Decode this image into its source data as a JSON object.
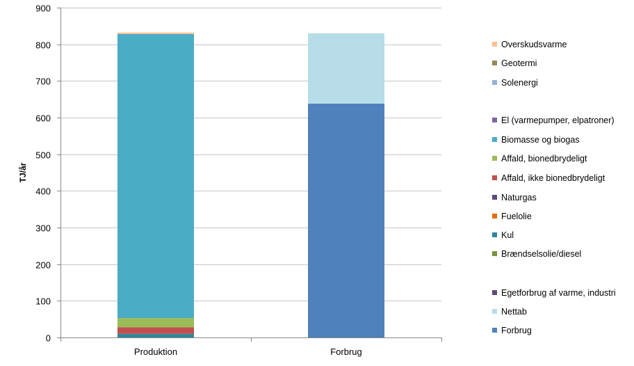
{
  "chart_data": {
    "type": "bar",
    "stacked": true,
    "categories": [
      "Produktion",
      "Forbrug"
    ],
    "ylabel": "TJ/år",
    "xlabel": "",
    "title": "",
    "ylim": [
      0,
      900
    ],
    "yticks": [
      0,
      100,
      200,
      300,
      400,
      500,
      600,
      700,
      800,
      900
    ],
    "grid": true,
    "legend_position": "right",
    "series": [
      {
        "name": "Forbrug",
        "color": "#4F81BD",
        "values": [
          0,
          638
        ]
      },
      {
        "name": "Nettab",
        "color": "#B7DDE8",
        "values": [
          0,
          192
        ]
      },
      {
        "name": "Egetforbrug af varme, industri",
        "color": "#604A7B",
        "values": [
          0,
          0
        ]
      },
      {
        "name": "Brændselsolie/diesel",
        "color": "#77933C",
        "values": [
          0,
          0
        ]
      },
      {
        "name": "Kul",
        "color": "#31859C",
        "values": [
          10,
          0
        ]
      },
      {
        "name": "Fuelolie",
        "color": "#E46C0A",
        "values": [
          0,
          0
        ]
      },
      {
        "name": "Naturgas",
        "color": "#604A7B",
        "values": [
          0,
          0
        ]
      },
      {
        "name": "Affald, ikke bionedbrydeligt",
        "color": "#C0504D",
        "values": [
          18,
          0
        ]
      },
      {
        "name": "Affald, bionedbrydeligt",
        "color": "#9BBB59",
        "values": [
          25,
          0
        ]
      },
      {
        "name": "Biomasse og biogas",
        "color": "#4BACC6",
        "values": [
          775,
          0
        ]
      },
      {
        "name": "El (varmepumper, elpatroner)",
        "color": "#8064A2",
        "values": [
          0,
          0
        ]
      },
      {
        "name": "Solenergi",
        "color": "#95B3D7",
        "values": [
          0,
          0
        ]
      },
      {
        "name": "Geotermi",
        "color": "#948A54",
        "values": [
          0,
          0
        ]
      },
      {
        "name": "Overskudsvarme",
        "color": "#FAC090",
        "values": [
          4,
          0
        ]
      }
    ],
    "legend_order": [
      "Overskudsvarme",
      "Geotermi",
      "Solenergi",
      "El (varmepumper, elpatroner)",
      "Biomasse og biogas",
      "Affald, bionedbrydeligt",
      "Affald, ikke bionedbrydeligt",
      "Naturgas",
      "Fuelolie",
      "Kul",
      "Brændselsolie/diesel",
      "Egetforbrug af varme, industri",
      "Nettab",
      "Forbrug"
    ]
  }
}
